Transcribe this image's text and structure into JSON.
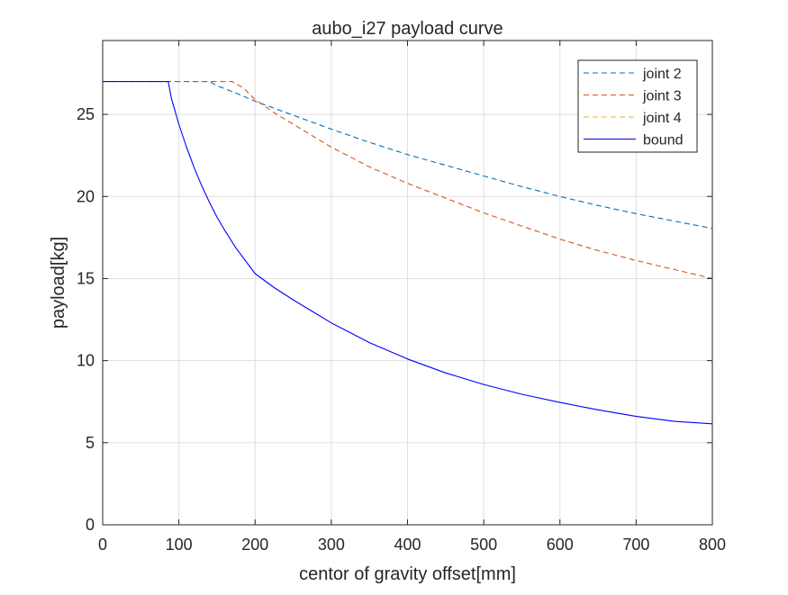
{
  "chart_data": {
    "type": "line",
    "title": "aubo_i27 payload curve",
    "xlabel": "centor of gravity offset[mm]",
    "ylabel": "payload[kg]",
    "xlim": [
      0,
      800
    ],
    "ylim": [
      0,
      29.5
    ],
    "xticks": [
      0,
      100,
      200,
      300,
      400,
      500,
      600,
      700,
      800
    ],
    "yticks": [
      0,
      5,
      10,
      15,
      20,
      25
    ],
    "grid": true,
    "legend_position": "top-right",
    "series": [
      {
        "name": "joint 2",
        "color": "#0072BD",
        "style": "dashed",
        "x": [
          0,
          100,
          140,
          150,
          175,
          200,
          250,
          300,
          350,
          400,
          450,
          500,
          550,
          600,
          650,
          700,
          750,
          800
        ],
        "y": [
          27,
          27,
          27,
          26.75,
          26.3,
          25.8,
          24.95,
          24.1,
          23.3,
          22.55,
          21.9,
          21.25,
          20.6,
          20.0,
          19.45,
          18.95,
          18.5,
          18.05
        ]
      },
      {
        "name": "joint 3",
        "color": "#D95319",
        "style": "dashed",
        "x": [
          95,
          120,
          150,
          170,
          185,
          200,
          225,
          250,
          275,
          300,
          350,
          400,
          450,
          500,
          550,
          600,
          650,
          700,
          750,
          800
        ],
        "y": [
          27,
          27,
          27,
          27,
          26.6,
          25.9,
          25.1,
          24.4,
          23.7,
          23.0,
          21.8,
          20.8,
          19.9,
          19.0,
          18.2,
          17.4,
          16.7,
          16.1,
          15.55,
          15.0
        ]
      },
      {
        "name": "joint 4",
        "color": "#EDB120",
        "style": "dashed",
        "x": [],
        "y": []
      },
      {
        "name": "bound",
        "color": "#0000FF",
        "style": "solid",
        "x": [
          0,
          86,
          90,
          100,
          110,
          120,
          130,
          140,
          150,
          160,
          175,
          200,
          225,
          250,
          275,
          300,
          350,
          400,
          450,
          500,
          550,
          600,
          650,
          700,
          750,
          800
        ],
        "y": [
          27,
          27,
          26.0,
          24.4,
          23.0,
          21.75,
          20.65,
          19.65,
          18.75,
          17.95,
          16.85,
          15.3,
          14.45,
          13.7,
          13.0,
          12.3,
          11.1,
          10.1,
          9.25,
          8.55,
          7.95,
          7.45,
          7.0,
          6.6,
          6.3,
          6.15
        ]
      }
    ]
  }
}
